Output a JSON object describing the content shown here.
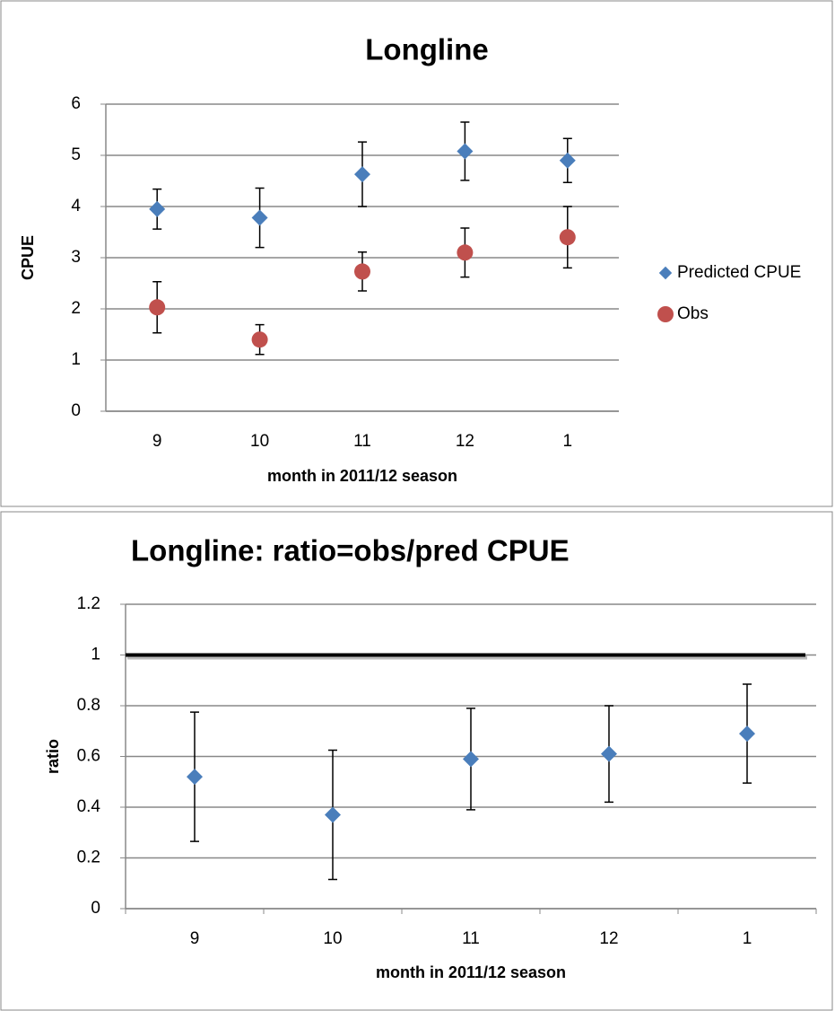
{
  "chart_data": [
    {
      "type": "scatter",
      "title": "Longline",
      "y_label": "CPUE",
      "x_label": "month in 2011/12 season",
      "categories": [
        "9",
        "10",
        "11",
        "12",
        "1"
      ],
      "ylim": [
        0,
        6
      ],
      "yticks": [
        0,
        1,
        2,
        3,
        4,
        5,
        6
      ],
      "grid": true,
      "legend": "right",
      "series": [
        {
          "name": "Predicted CPUE",
          "color": "#4a7ebb",
          "marker": "diamond",
          "values": [
            3.95,
            3.78,
            4.63,
            5.08,
            4.9
          ],
          "errors": [
            0.39,
            0.58,
            0.63,
            0.57,
            0.43
          ]
        },
        {
          "name": "Obs",
          "color": "#c0504d",
          "marker": "circle",
          "values": [
            2.03,
            1.4,
            2.73,
            3.1,
            3.4
          ],
          "errors": [
            0.5,
            0.29,
            0.38,
            0.48,
            0.6
          ]
        }
      ]
    },
    {
      "type": "scatter",
      "title": "Longline: ratio=obs/pred  CPUE",
      "y_label": "ratio",
      "x_label": "month in 2011/12 season",
      "categories": [
        "9",
        "10",
        "11",
        "12",
        "1"
      ],
      "ylim": [
        0,
        1.2
      ],
      "yticks": [
        0,
        0.2,
        0.4,
        0.6,
        0.8,
        1,
        1.2
      ],
      "grid": true,
      "hline": 1,
      "series": [
        {
          "color": "#4a7ebb",
          "marker": "diamond",
          "values": [
            0.52,
            0.37,
            0.59,
            0.61,
            0.69
          ],
          "errors": [
            0.255,
            0.255,
            0.2,
            0.19,
            0.195
          ]
        }
      ]
    }
  ]
}
